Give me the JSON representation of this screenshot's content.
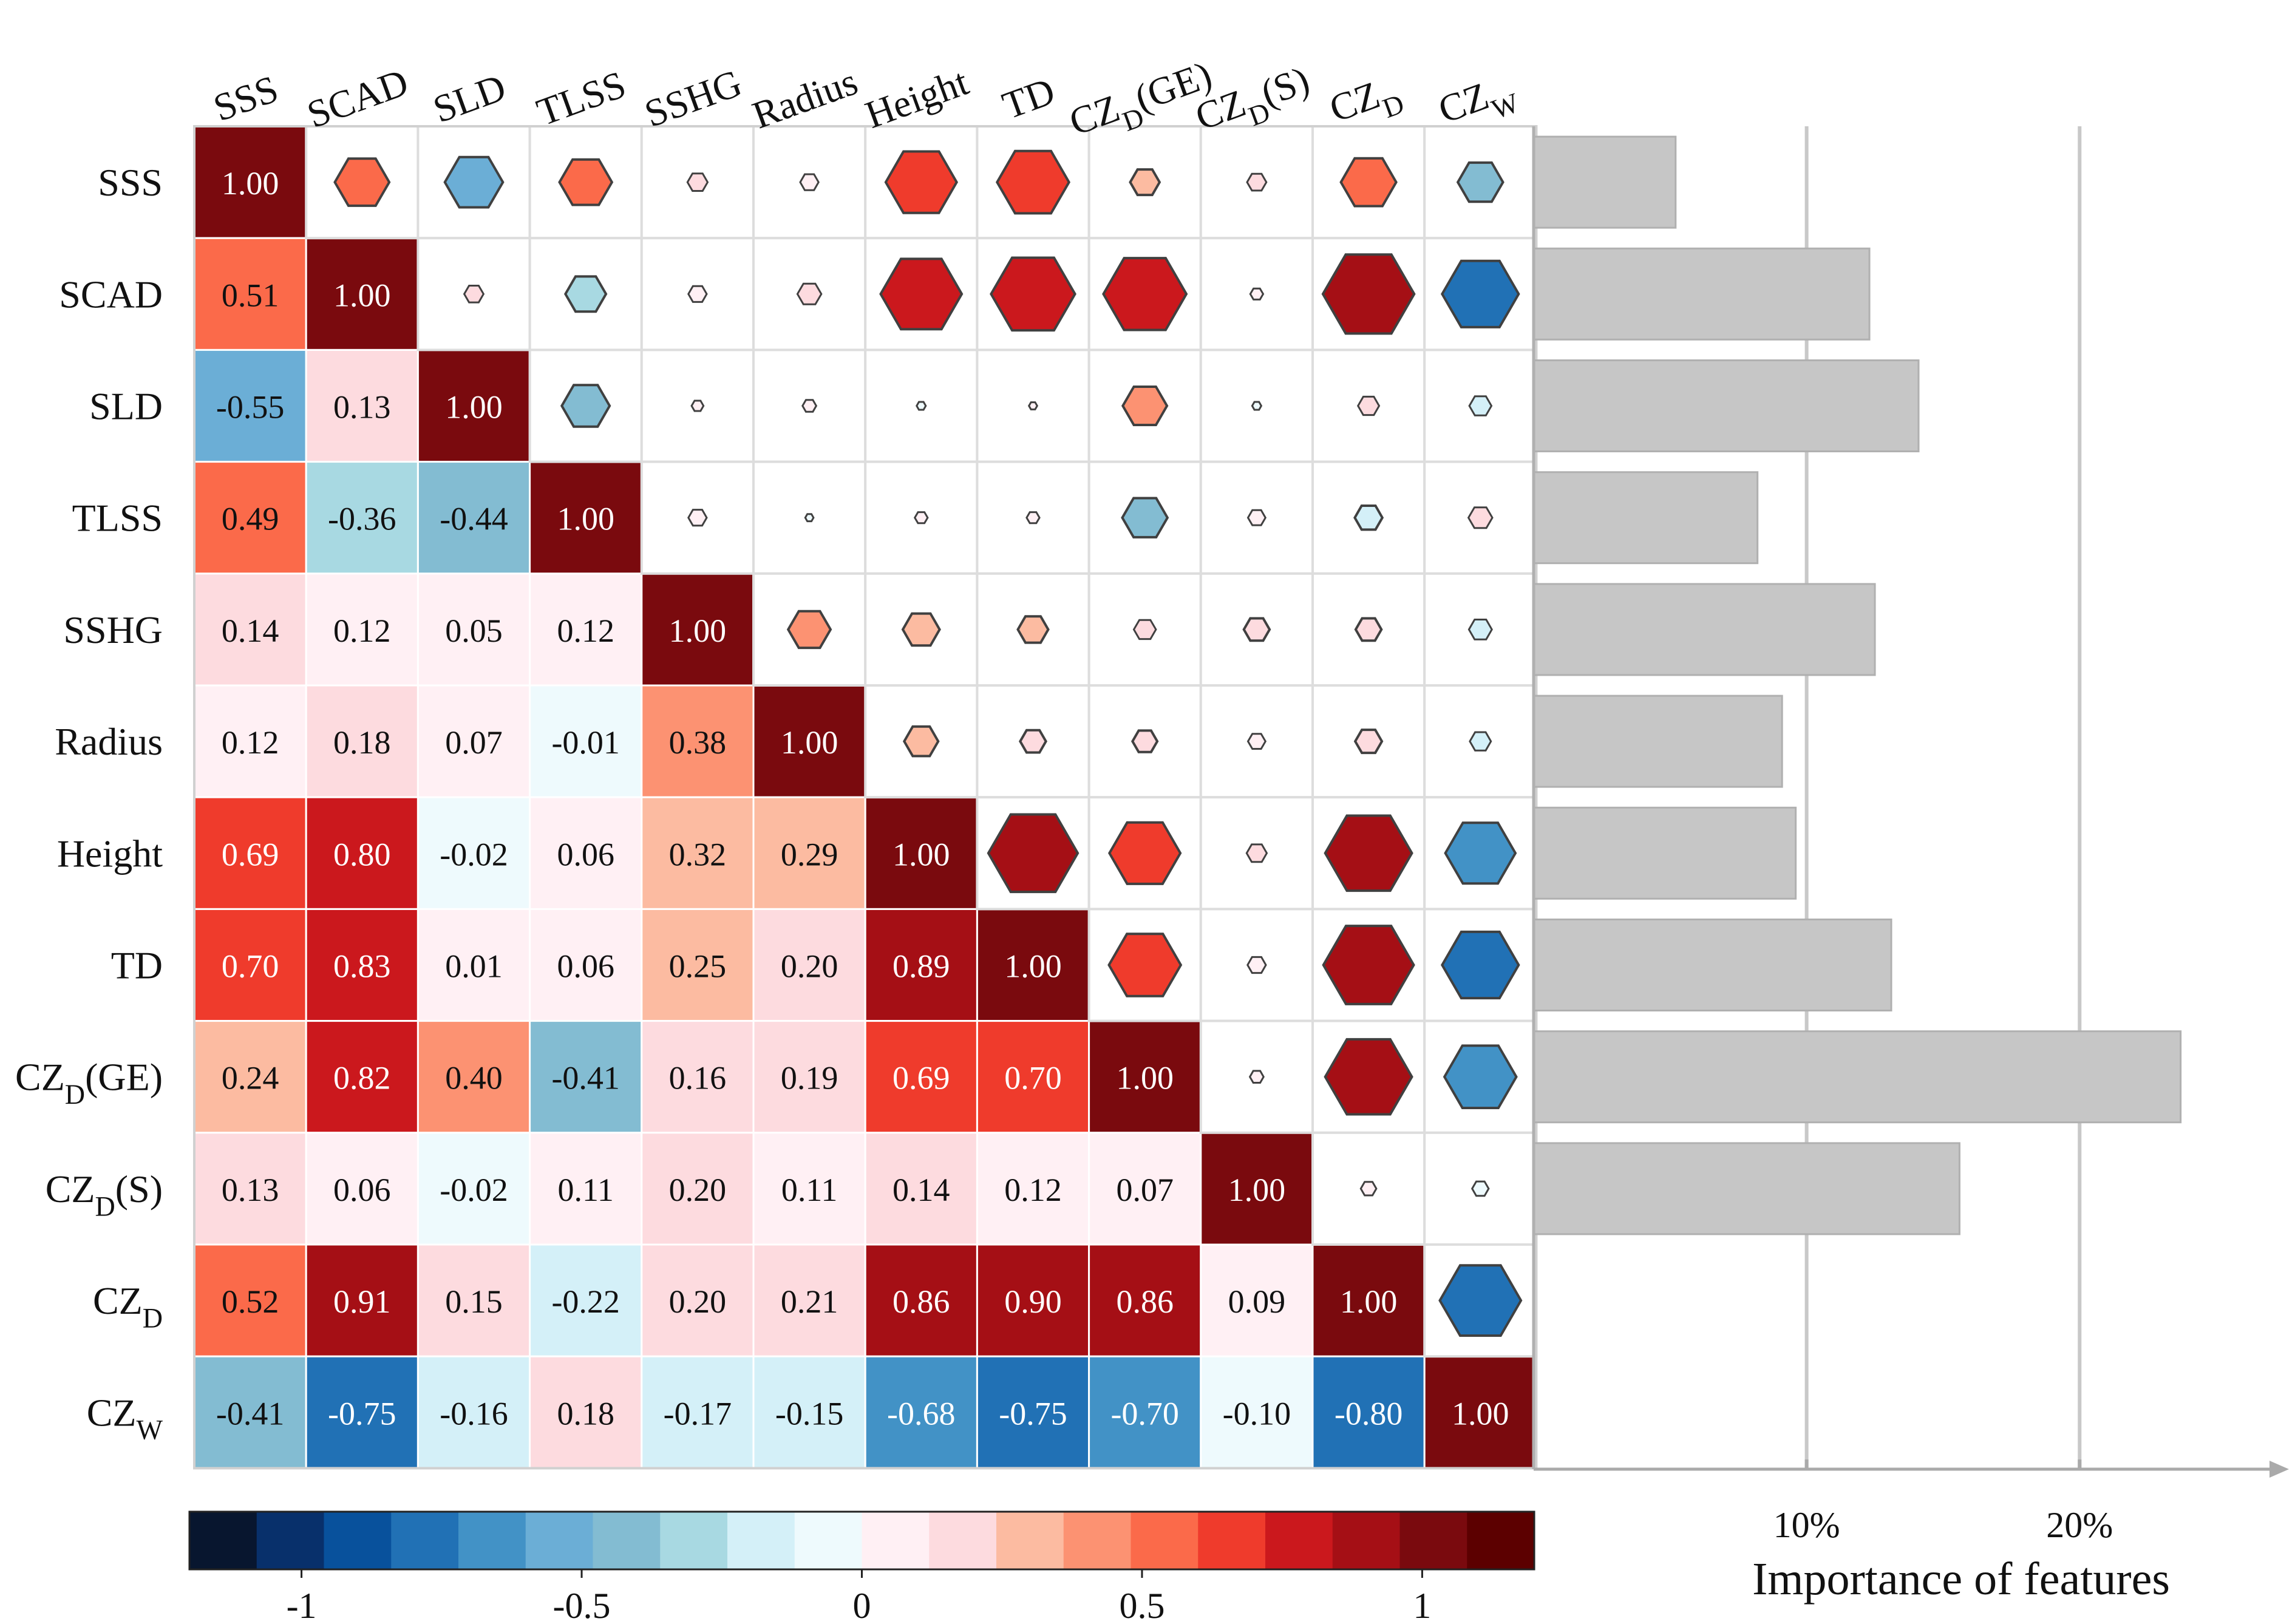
{
  "chart_data": [
    {
      "type": "heatmap",
      "title": "",
      "variables": [
        {
          "base": "SSS",
          "sub": "",
          "suffix": ""
        },
        {
          "base": "SCAD",
          "sub": "",
          "suffix": ""
        },
        {
          "base": "SLD",
          "sub": "",
          "suffix": ""
        },
        {
          "base": "TLSS",
          "sub": "",
          "suffix": ""
        },
        {
          "base": "SSHG",
          "sub": "",
          "suffix": ""
        },
        {
          "base": "Radius",
          "sub": "",
          "suffix": ""
        },
        {
          "base": "Height",
          "sub": "",
          "suffix": ""
        },
        {
          "base": "TD",
          "sub": "",
          "suffix": ""
        },
        {
          "base": "CZ",
          "sub": "D",
          "suffix": "(GE)"
        },
        {
          "base": "CZ",
          "sub": "D",
          "suffix": "(S)"
        },
        {
          "base": "CZ",
          "sub": "D",
          "suffix": ""
        },
        {
          "base": "CZ",
          "sub": "W",
          "suffix": ""
        }
      ],
      "matrix": [
        [
          1.0,
          0.51,
          -0.55,
          0.49,
          0.14,
          0.12,
          0.69,
          0.7,
          0.24,
          0.13,
          0.52,
          -0.41
        ],
        [
          0.51,
          1.0,
          0.13,
          -0.36,
          0.12,
          0.18,
          0.8,
          0.83,
          0.82,
          0.06,
          0.91,
          -0.75
        ],
        [
          -0.55,
          0.13,
          1.0,
          -0.44,
          0.05,
          0.07,
          -0.02,
          0.01,
          0.4,
          -0.02,
          0.15,
          -0.16
        ],
        [
          0.49,
          -0.36,
          -0.44,
          1.0,
          0.12,
          -0.01,
          0.06,
          0.06,
          -0.41,
          0.11,
          -0.22,
          0.18
        ],
        [
          0.14,
          0.12,
          0.05,
          0.12,
          1.0,
          0.38,
          0.32,
          0.25,
          0.16,
          0.2,
          0.2,
          -0.17
        ],
        [
          0.12,
          0.18,
          0.07,
          -0.01,
          0.38,
          1.0,
          0.29,
          0.2,
          0.19,
          0.11,
          0.21,
          -0.15
        ],
        [
          0.69,
          0.8,
          -0.02,
          0.06,
          0.32,
          0.29,
          1.0,
          0.89,
          0.69,
          0.14,
          0.86,
          -0.68
        ],
        [
          0.7,
          0.83,
          0.01,
          0.06,
          0.25,
          0.2,
          0.89,
          1.0,
          0.7,
          0.12,
          0.9,
          -0.75
        ],
        [
          0.24,
          0.82,
          0.4,
          -0.41,
          0.16,
          0.19,
          0.69,
          0.7,
          1.0,
          0.07,
          0.86,
          -0.7
        ],
        [
          0.13,
          0.06,
          -0.02,
          0.11,
          0.2,
          0.11,
          0.14,
          0.12,
          0.07,
          1.0,
          0.09,
          -0.1
        ],
        [
          0.52,
          0.91,
          0.15,
          -0.22,
          0.2,
          0.21,
          0.86,
          0.9,
          0.86,
          0.09,
          1.0,
          -0.8
        ],
        [
          -0.41,
          -0.75,
          -0.16,
          0.18,
          -0.17,
          -0.15,
          -0.68,
          -0.75,
          -0.7,
          -0.1,
          -0.8,
          1.0
        ]
      ],
      "lower_triangle": "numeric labels",
      "upper_triangle": "hexagon glyphs sized by |r|",
      "colorbar": {
        "range": [
          -1.2,
          1.2
        ],
        "ticks": [
          -1,
          -0.5,
          0,
          0.5,
          1
        ],
        "tick_labels": [
          "-1",
          "-0.5",
          "0",
          "0.5",
          "1"
        ],
        "colors": [
          "#08162f",
          "#08306b",
          "#08519c",
          "#2171b5",
          "#4292c6",
          "#6baed6",
          "#83bcd2",
          "#a8d9e2",
          "#d4f0f8",
          "#eefafd",
          "#fff0f4",
          "#fddbdf",
          "#fcbba1",
          "#fc9272",
          "#fb6a4a",
          "#ef3b2c",
          "#cb181d",
          "#a50f15",
          "#7a0a0e",
          "#5c0000"
        ]
      }
    },
    {
      "type": "bar",
      "orientation": "horizontal",
      "categories": [
        "SSS",
        "SCAD",
        "SLD",
        "TLSS",
        "SSHG",
        "Radius",
        "Height",
        "TD",
        "CZD(GE)",
        "CZD(S)"
      ],
      "values": [
        5.2,
        12.3,
        14.1,
        8.2,
        12.5,
        9.1,
        9.6,
        13.1,
        23.7,
        15.6
      ],
      "unit": "%",
      "xlim": [
        0,
        27
      ],
      "ticks": [
        10,
        20
      ],
      "tick_labels": [
        "10%",
        "20%"
      ],
      "xlabel": "Importance of features",
      "bar_color": "#c6c6c6"
    }
  ]
}
